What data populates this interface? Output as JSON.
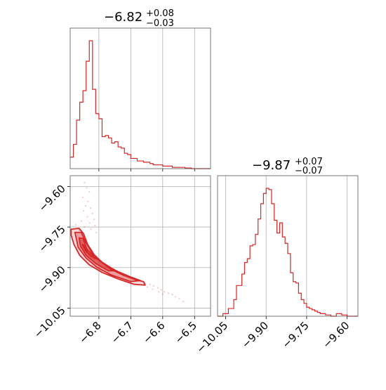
{
  "chart_data": {
    "type": "corner",
    "color": "#d62728",
    "grid": true,
    "titles": {
      "p1": {
        "value": "−6.82",
        "sup": "+0.08",
        "sub": "−0.03"
      },
      "p2": {
        "value": "−9.87",
        "sup": "+0.07",
        "sub": "−0.07"
      }
    },
    "axes": {
      "p1": {
        "range": [
          -6.89,
          -6.45
        ],
        "ticks": [
          -6.8,
          -6.7,
          -6.6,
          -6.5
        ],
        "tick_labels": [
          "−6.8",
          "−6.7",
          "−6.6",
          "−6.5"
        ]
      },
      "p2": {
        "range": [
          -10.08,
          -9.56
        ],
        "ticks": [
          -10.05,
          -9.9,
          -9.75,
          -9.6
        ],
        "tick_labels": [
          "−10.05",
          "−9.90",
          "−9.75",
          "−9.60"
        ]
      }
    },
    "hist_p1": {
      "bins": [
        -6.89,
        -6.88,
        -6.87,
        -6.86,
        -6.85,
        -6.84,
        -6.83,
        -6.82,
        -6.81,
        -6.8,
        -6.79,
        -6.78,
        -6.77,
        -6.76,
        -6.75,
        -6.74,
        -6.73,
        -6.72,
        -6.71,
        -6.7,
        -6.69,
        -6.68,
        -6.67,
        -6.66,
        -6.65,
        -6.64,
        -6.63,
        -6.62,
        -6.61,
        -6.6,
        -6.59,
        -6.58,
        -6.57,
        -6.56,
        -6.55,
        -6.54,
        -6.53,
        -6.52,
        -6.51,
        -6.5,
        -6.49,
        -6.48,
        -6.47,
        -6.46,
        -6.45
      ],
      "counts": [
        0.09,
        0.19,
        0.38,
        0.52,
        0.61,
        0.84,
        1.0,
        0.62,
        0.43,
        0.39,
        0.25,
        0.26,
        0.24,
        0.2,
        0.21,
        0.17,
        0.16,
        0.12,
        0.11,
        0.08,
        0.08,
        0.06,
        0.06,
        0.05,
        0.05,
        0.04,
        0.03,
        0.03,
        0.03,
        0.02,
        0.02,
        0.02,
        0.01,
        0.01,
        0.01,
        0.01,
        0.005,
        0.005,
        0.0,
        0.0,
        0.0,
        0.0,
        0.0,
        0.0
      ]
    },
    "hist_p2": {
      "bins": [
        -10.08,
        -10.07,
        -10.06,
        -10.05,
        -10.04,
        -10.03,
        -10.02,
        -10.01,
        -10.0,
        -9.99,
        -9.98,
        -9.97,
        -9.96,
        -9.95,
        -9.94,
        -9.93,
        -9.92,
        -9.91,
        -9.9,
        -9.89,
        -9.88,
        -9.87,
        -9.86,
        -9.85,
        -9.84,
        -9.83,
        -9.82,
        -9.81,
        -9.8,
        -9.79,
        -9.78,
        -9.77,
        -9.76,
        -9.75,
        -9.74,
        -9.73,
        -9.72,
        -9.71,
        -9.7,
        -9.69,
        -9.68,
        -9.67,
        -9.66,
        -9.65,
        -9.64,
        -9.63,
        -9.62,
        -9.61,
        -9.6,
        -9.59,
        -9.58,
        -9.57,
        -9.56
      ],
      "counts": [
        0.0,
        0.0,
        0.02,
        0.02,
        0.06,
        0.06,
        0.13,
        0.24,
        0.24,
        0.33,
        0.42,
        0.45,
        0.55,
        0.56,
        0.64,
        0.76,
        0.88,
        0.96,
        1.0,
        0.99,
        0.88,
        0.75,
        0.65,
        0.73,
        0.62,
        0.57,
        0.49,
        0.34,
        0.27,
        0.26,
        0.18,
        0.13,
        0.1,
        0.07,
        0.06,
        0.05,
        0.04,
        0.03,
        0.02,
        0.02,
        0.01,
        0.01,
        0.0,
        0.0,
        0.02,
        0.02,
        0.01,
        0.01,
        0.0,
        0.0,
        0.0,
        0.0
      ]
    },
    "contours_2d": [
      {
        "level": "outer",
        "points": [
          [
            -6.887,
            -9.758
          ],
          [
            -6.862,
            -9.755
          ],
          [
            -6.848,
            -9.775
          ],
          [
            -6.835,
            -9.815
          ],
          [
            -6.815,
            -9.852
          ],
          [
            -6.79,
            -9.882
          ],
          [
            -6.76,
            -9.908
          ],
          [
            -6.72,
            -9.93
          ],
          [
            -6.685,
            -9.945
          ],
          [
            -6.66,
            -9.952
          ],
          [
            -6.655,
            -9.965
          ],
          [
            -6.69,
            -9.962
          ],
          [
            -6.74,
            -9.942
          ],
          [
            -6.79,
            -9.918
          ],
          [
            -6.83,
            -9.89
          ],
          [
            -6.86,
            -9.855
          ],
          [
            -6.878,
            -9.815
          ],
          [
            -6.887,
            -9.78
          ]
        ]
      },
      {
        "level": "middle",
        "points": [
          [
            -6.875,
            -9.77
          ],
          [
            -6.855,
            -9.77
          ],
          [
            -6.842,
            -9.805
          ],
          [
            -6.82,
            -9.848
          ],
          [
            -6.79,
            -9.88
          ],
          [
            -6.75,
            -9.91
          ],
          [
            -6.7,
            -9.935
          ],
          [
            -6.67,
            -9.948
          ],
          [
            -6.7,
            -9.952
          ],
          [
            -6.76,
            -9.928
          ],
          [
            -6.805,
            -9.9
          ],
          [
            -6.84,
            -9.865
          ],
          [
            -6.865,
            -9.825
          ]
        ]
      },
      {
        "level": "inner",
        "points": [
          [
            -6.862,
            -9.79
          ],
          [
            -6.85,
            -9.792
          ],
          [
            -6.838,
            -9.83
          ],
          [
            -6.815,
            -9.86
          ],
          [
            -6.78,
            -9.89
          ],
          [
            -6.745,
            -9.912
          ],
          [
            -6.77,
            -9.912
          ],
          [
            -6.81,
            -9.885
          ],
          [
            -6.84,
            -9.855
          ],
          [
            -6.858,
            -9.82
          ]
        ]
      },
      {
        "level": "core",
        "points": [
          [
            -6.852,
            -9.815
          ],
          [
            -6.845,
            -9.818
          ],
          [
            -6.835,
            -9.845
          ],
          [
            -6.815,
            -9.865
          ],
          [
            -6.805,
            -9.868
          ],
          [
            -6.825,
            -9.858
          ],
          [
            -6.842,
            -9.838
          ]
        ]
      }
    ],
    "scatter_2d": [
      [
        -6.845,
        -9.585
      ],
      [
        -6.838,
        -9.605
      ],
      [
        -6.83,
        -9.62
      ],
      [
        -6.85,
        -9.64
      ],
      [
        -6.835,
        -9.655
      ],
      [
        -6.842,
        -9.672
      ],
      [
        -6.826,
        -9.68
      ],
      [
        -6.848,
        -9.69
      ],
      [
        -6.82,
        -9.7
      ],
      [
        -6.836,
        -9.712
      ],
      [
        -6.815,
        -9.722
      ],
      [
        -6.855,
        -9.728
      ],
      [
        -6.829,
        -9.735
      ],
      [
        -6.872,
        -9.742
      ],
      [
        -6.812,
        -9.745
      ],
      [
        -6.845,
        -9.75
      ],
      [
        -6.825,
        -9.758
      ],
      [
        -6.862,
        -9.762
      ],
      [
        -6.808,
        -9.77
      ],
      [
        -6.655,
        -9.958
      ],
      [
        -6.64,
        -9.962
      ],
      [
        -6.628,
        -9.968
      ],
      [
        -6.615,
        -9.975
      ],
      [
        -6.605,
        -9.982
      ],
      [
        -6.595,
        -9.99
      ],
      [
        -6.582,
        -9.995
      ],
      [
        -6.57,
        -10.0
      ],
      [
        -6.56,
        -10.008
      ],
      [
        -6.548,
        -10.015
      ],
      [
        -6.535,
        -10.025
      ],
      [
        -6.648,
        -9.972
      ],
      [
        -6.632,
        -9.98
      ],
      [
        -6.612,
        -9.99
      ],
      [
        -6.6,
        -9.998
      ]
    ]
  }
}
